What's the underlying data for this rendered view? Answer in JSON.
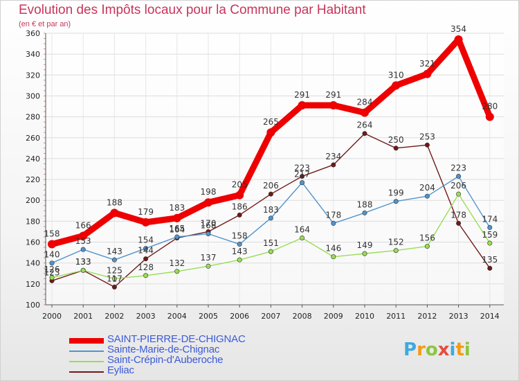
{
  "header": {
    "title": "Evolution des Impôts locaux pour la Commune par Habitant",
    "subtitle": "(en € et par an)"
  },
  "logo": {
    "text": "Proxiti",
    "letters": [
      "P",
      "r",
      "o",
      "x",
      "i",
      "t",
      "i"
    ],
    "colors": [
      "#3fa9e0",
      "#f39c12",
      "#8cc63f",
      "#e74c3c",
      "#3fa9e0",
      "#f39c12",
      "#8cc63f"
    ]
  },
  "chart_data": {
    "type": "line",
    "x": [
      2000,
      2001,
      2002,
      2003,
      2004,
      2005,
      2006,
      2007,
      2008,
      2009,
      2010,
      2011,
      2012,
      2013,
      2014
    ],
    "ylim": [
      100,
      360
    ],
    "yticks": [
      100,
      120,
      140,
      160,
      180,
      200,
      220,
      240,
      260,
      280,
      300,
      320,
      340,
      360
    ],
    "grid": true,
    "legend_position": "bottom-left",
    "series": [
      {
        "name": "SAINT-PIERRE-DE-CHIGNAC",
        "color": "#ee0000",
        "bold": true,
        "values": [
          158,
          166,
          188,
          179,
          183,
          198,
          205,
          265,
          291,
          291,
          284,
          310,
          321,
          354,
          280
        ]
      },
      {
        "name": "Sainte-Marie-de-Chignac",
        "color": "#4f94cd",
        "values": [
          140,
          153,
          143,
          154,
          165,
          168,
          158,
          183,
          217,
          178,
          188,
          199,
          204,
          223,
          174
        ]
      },
      {
        "name": "Saint-Crépin-d'Auberoche",
        "color": "#99dd55",
        "values": [
          126,
          133,
          125,
          128,
          132,
          137,
          143,
          151,
          164,
          146,
          149,
          152,
          156,
          206,
          159
        ]
      },
      {
        "name": "Eyliac",
        "color": "#701818",
        "values": [
          123,
          133,
          117,
          144,
          164,
          170,
          186,
          206,
          223,
          234,
          264,
          250,
          253,
          178,
          135
        ]
      }
    ]
  }
}
